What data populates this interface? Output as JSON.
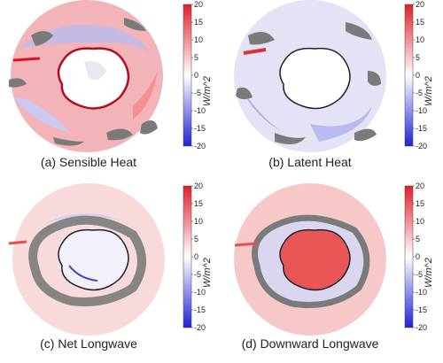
{
  "colorbar": {
    "ticks": [
      "20",
      "15",
      "10",
      "5",
      "0",
      "-5",
      "-10",
      "-15",
      "-20"
    ],
    "units": "W/m^2",
    "colors": {
      "max": "#e0202a",
      "zero": "#ffffff",
      "min": "#1f22d6"
    }
  },
  "panels": [
    {
      "id": "a",
      "caption": "(a) Sensible Heat",
      "ocean": "#f4a6ab",
      "land": "#ffffff",
      "coast": "#b01020",
      "landmask": "#707070"
    },
    {
      "id": "b",
      "caption": "(b) Latent Heat",
      "ocean": "#dfe0f4",
      "land": "#ffffff",
      "coast": "#202030",
      "landmask": "#707070"
    },
    {
      "id": "c",
      "caption": "(c) Net Longwave",
      "ocean": "#f7d6d6",
      "land": "#f2f0fb",
      "coast": "#202030",
      "landmask": "#707070"
    },
    {
      "id": "d",
      "caption": "(d) Downward Longwave",
      "ocean": "#f6c8c8",
      "land": "#e95656",
      "coast": "#202030",
      "landmask": "#707070"
    }
  ]
}
